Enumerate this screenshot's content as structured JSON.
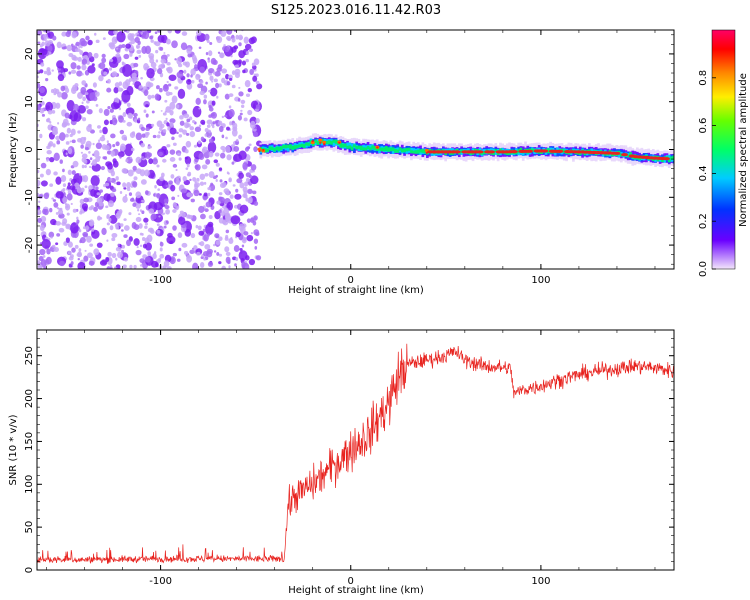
{
  "title": "S125.2023.016.11.42.R03",
  "colors": {
    "snr_line": "#e8231f",
    "noise_dot": "#7a1cf0",
    "noise_faint": "#c7a6f8",
    "band_core": "#e8231f"
  },
  "chart_data": [
    {
      "type": "heatmap",
      "xlabel": "Height of straight line (km)",
      "ylabel": "Frequency (Hz)",
      "xlim": [
        -165,
        170
      ],
      "ylim": [
        -25,
        25
      ],
      "xticks": [
        -100,
        0,
        100
      ],
      "yticks": [
        -20,
        -10,
        0,
        10,
        20
      ],
      "colorbar": {
        "label": "Normalized spectral amplitude",
        "range": [
          0,
          1
        ],
        "ticks": [
          "0.0",
          "0.2",
          "0.4",
          "0.6",
          "0.8"
        ],
        "colormap": [
          "#f3e6fb",
          "#6a00ff",
          "#0033ff",
          "#00ccff",
          "#00ff66",
          "#66ff00",
          "#ffee00",
          "#ff8800",
          "#ff0000",
          "#ff0066"
        ]
      },
      "noise_region_x": [
        -165,
        -48
      ],
      "signal_band": {
        "x": [
          -48,
          -30,
          -20,
          -10,
          0,
          20,
          40,
          60,
          80,
          100,
          120,
          140,
          150,
          160,
          170
        ],
        "freq": [
          0,
          0.5,
          1.5,
          1.5,
          0.5,
          0,
          -0.5,
          -0.5,
          -0.5,
          -0.3,
          -0.5,
          -0.8,
          -1.5,
          -1.8,
          -2
        ]
      }
    },
    {
      "type": "line",
      "xlabel": "Height of straight line (km)",
      "ylabel": "SNR (10 * v/v)",
      "xlim": [
        -165,
        170
      ],
      "ylim": [
        0,
        280
      ],
      "xticks": [
        -100,
        0,
        100
      ],
      "yticks": [
        0,
        50,
        100,
        150,
        200,
        250
      ],
      "series": [
        {
          "x": [
            -165,
            -140,
            -100,
            -60,
            -35,
            -33,
            -30,
            -20,
            -10,
            0,
            10,
            20,
            25,
            30,
            40,
            50,
            55,
            60,
            70,
            80,
            84,
            86,
            90,
            100,
            110,
            120,
            130,
            140,
            150,
            160,
            170
          ],
          "y": [
            12,
            12,
            13,
            13,
            13,
            75,
            85,
            100,
            120,
            140,
            160,
            195,
            225,
            240,
            245,
            250,
            255,
            245,
            238,
            236,
            235,
            205,
            210,
            215,
            222,
            228,
            232,
            235,
            238,
            236,
            232
          ]
        }
      ]
    }
  ]
}
